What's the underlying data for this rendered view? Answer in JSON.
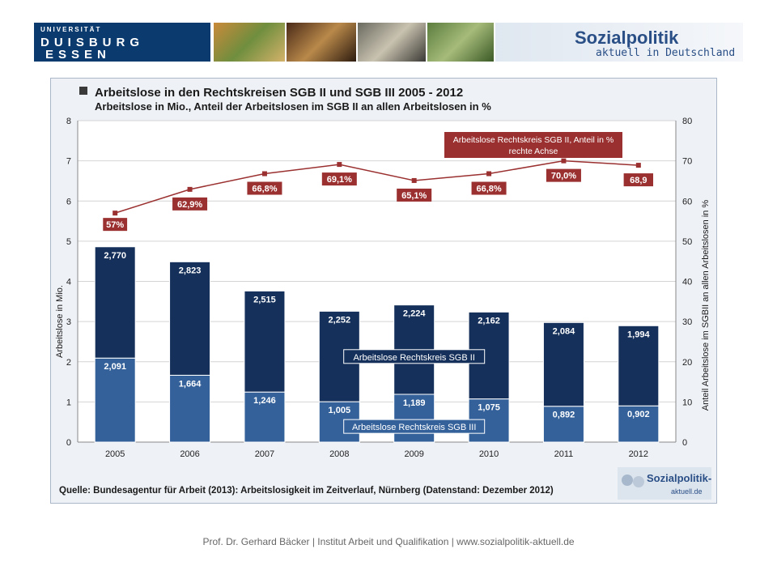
{
  "header": {
    "university": {
      "line1": "UNIVERSITÄT",
      "line2": "DUISBURG",
      "line3": "ESSEN"
    },
    "logo": {
      "title": "Sozialpolitik",
      "subtitle": "aktuell in Deutschland"
    }
  },
  "chart_data": {
    "type": "bar",
    "title": "Arbeitslose in den Rechtskreisen SGB II und SGB III 2005 - 2012",
    "subtitle": "Arbeitslose in Mio., Anteil der Arbeitslosen im SGB II an allen Arbeitslosen in %",
    "ylabel": "Arbeitslose in Mio.",
    "y2label": "Anteil Arbeitslose im SGBII an allen Arbeitslosen in %",
    "ylim": [
      0,
      8
    ],
    "y2lim": [
      0,
      80
    ],
    "yticks": [
      "0",
      "1",
      "2",
      "3",
      "4",
      "5",
      "6",
      "7",
      "8"
    ],
    "y2ticks": [
      "0",
      "10",
      "20",
      "30",
      "40",
      "50",
      "60",
      "70",
      "80"
    ],
    "grid": true,
    "stacked": true,
    "categories": [
      "2005",
      "2006",
      "2007",
      "2008",
      "2009",
      "2010",
      "2011",
      "2012"
    ],
    "series": [
      {
        "name": "Arbeitslose Rechtskreis SGB III",
        "values": [
          2.091,
          1.664,
          1.246,
          1.005,
          1.189,
          1.075,
          0.892,
          0.902
        ],
        "labels": [
          "2,091",
          "1,664",
          "1,246",
          "1,005",
          "1,189",
          "1,075",
          "0,892",
          "0,902"
        ],
        "color": "#34619a"
      },
      {
        "name": "Arbeitslose Rechtskreis SGB II",
        "values": [
          2.77,
          2.823,
          2.515,
          2.252,
          2.224,
          2.162,
          2.084,
          1.994
        ],
        "labels": [
          "2,770",
          "2,823",
          "2,515",
          "2,252",
          "2,224",
          "2,162",
          "2,084",
          "1,994"
        ],
        "color": "#15305a"
      },
      {
        "name": "Arbeitslose Rechtskreis SGB II, Anteil in %",
        "axis": "right",
        "type": "line",
        "values": [
          57,
          62.9,
          66.8,
          69.1,
          65.1,
          66.8,
          70.0,
          68.9
        ],
        "labels": [
          "57%",
          "62,9%",
          "66,8%",
          "69,1%",
          "65,1%",
          "66,8%",
          "70,0%",
          "68,9"
        ],
        "color": "#9b3030"
      }
    ],
    "annotations": {
      "line_legend_line1": "Arbeitslose Rechtskreis SGB II, Anteil in %",
      "line_legend_line2": "rechte Achse",
      "sgb2_label": "Arbeitslose Rechtskreis SGB II",
      "sgb3_label": "Arbeitslose Rechtskreis SGB III"
    },
    "source": "Quelle: Bundesagentur für Arbeit (2013): Arbeitslosigkeit im Zeitverlauf, Nürnberg  (Datenstand: Dezember 2012)",
    "watermark": {
      "line1": "Sozialpolitik-",
      "line2": "aktuell.de"
    }
  },
  "footer": "Prof. Dr. Gerhard Bäcker | Institut Arbeit und Qualifikation | www.sozialpolitik-aktuell.de"
}
